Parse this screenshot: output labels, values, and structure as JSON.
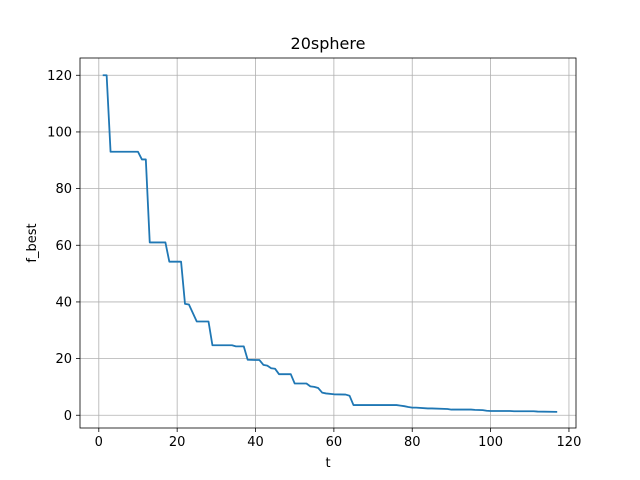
{
  "chart_data": {
    "type": "line",
    "title": "20sphere",
    "xlabel": "t",
    "ylabel": "f_best",
    "xlim": [
      -4.8,
      121.8
    ],
    "ylim": [
      -4.5,
      126.1
    ],
    "xticks": [
      0,
      20,
      40,
      60,
      80,
      100,
      120
    ],
    "yticks": [
      0,
      20,
      40,
      60,
      80,
      100,
      120
    ],
    "grid": true,
    "line_color": "#1f77b4",
    "series": [
      {
        "x": [
          1,
          2,
          3,
          10,
          11,
          12,
          13,
          17,
          18,
          21,
          22,
          23,
          25,
          28,
          29,
          34,
          35,
          37,
          38,
          40,
          41,
          42,
          43,
          44,
          45,
          46,
          49,
          50,
          53,
          54,
          55,
          56,
          57,
          58,
          60,
          63,
          64,
          65,
          76,
          77,
          78,
          79,
          80,
          81,
          84,
          85,
          89,
          90,
          95,
          96,
          98,
          99,
          100,
          105,
          106,
          111,
          112,
          117
        ],
        "y": [
          120,
          120,
          93,
          93,
          90.3,
          90.3,
          61,
          61,
          54.2,
          54.2,
          39.3,
          39.1,
          33.1,
          33.1,
          24.7,
          24.7,
          24.3,
          24.3,
          19.6,
          19.5,
          19.5,
          17.8,
          17.5,
          16.6,
          16.4,
          14.5,
          14.5,
          11.2,
          11.2,
          10.2,
          10.0,
          9.6,
          8.0,
          7.7,
          7.4,
          7.3,
          6.9,
          3.6,
          3.6,
          3.4,
          3.2,
          2.9,
          2.7,
          2.7,
          2.4,
          2.4,
          2.2,
          2.0,
          2.0,
          1.9,
          1.8,
          1.6,
          1.5,
          1.5,
          1.4,
          1.4,
          1.3,
          1.2
        ]
      }
    ]
  }
}
